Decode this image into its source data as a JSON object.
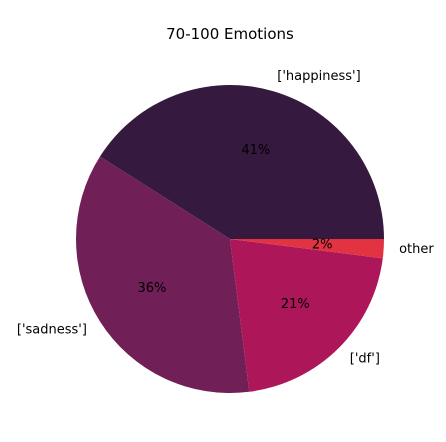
{
  "chart_data": {
    "type": "pie",
    "title": "70-100 Emotions",
    "labels": [
      "['happiness']",
      "['sadness']",
      "['df']",
      "other"
    ],
    "values": [
      41,
      36,
      21,
      2
    ],
    "percent_labels": [
      "41%",
      "36%",
      "21%",
      "2%"
    ],
    "colors": [
      "#35193e",
      "#701f57",
      "#ad1759",
      "#e13342"
    ],
    "start_angle": 0,
    "direction": "counterclockwise",
    "legend": "none"
  }
}
